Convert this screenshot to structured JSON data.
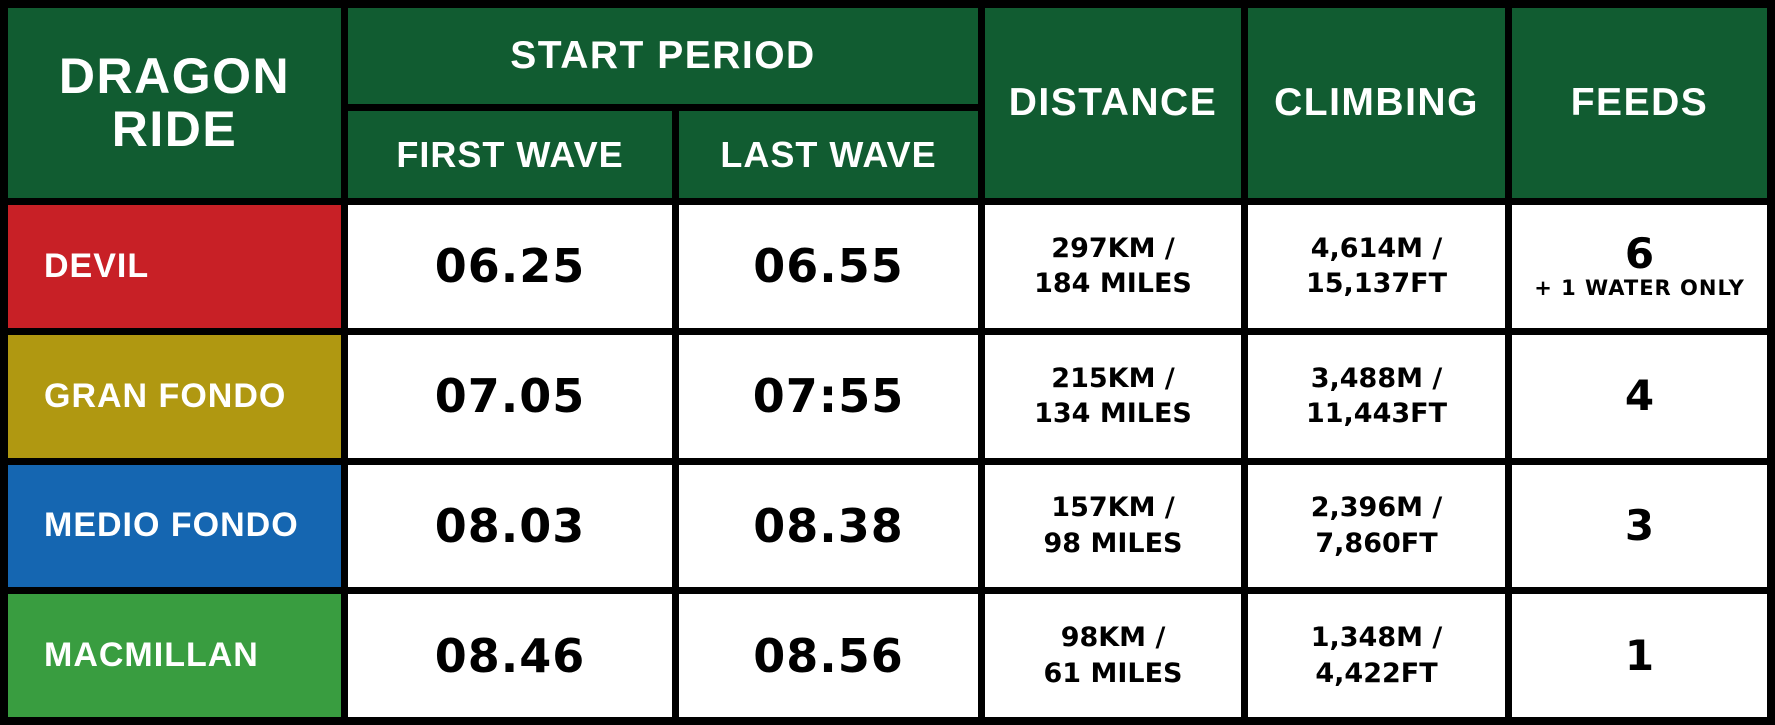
{
  "header": {
    "title_line1": "DRAGON",
    "title_line2": "RIDE",
    "start_period": "START PERIOD",
    "first_wave": "FIRST WAVE",
    "last_wave": "LAST WAVE",
    "distance": "DISTANCE",
    "climbing": "CLIMBING",
    "feeds": "FEEDS"
  },
  "colors": {
    "header_green": "#115c31",
    "devil_red": "#c82026",
    "gran_fondo_gold": "#b09811",
    "medio_fondo_blue": "#1566b1",
    "macmillan_green": "#399d40",
    "cell_white": "#ffffff",
    "border_black": "#000000"
  },
  "rows": [
    {
      "name": "DEVIL",
      "color": "#c82026",
      "first_wave": "06.25",
      "last_wave": "06.55",
      "distance_line1": "297KM /",
      "distance_line2": "184 MILES",
      "climbing_line1": "4,614M /",
      "climbing_line2": "15,137FT",
      "feeds": "6",
      "feeds_note": "+ 1 WATER ONLY"
    },
    {
      "name": "GRAN FONDO",
      "color": "#b09811",
      "first_wave": "07.05",
      "last_wave": "07:55",
      "distance_line1": "215KM /",
      "distance_line2": "134 MILES",
      "climbing_line1": "3,488M /",
      "climbing_line2": "11,443FT",
      "feeds": "4",
      "feeds_note": ""
    },
    {
      "name": "MEDIO FONDO",
      "color": "#1566b1",
      "first_wave": "08.03",
      "last_wave": "08.38",
      "distance_line1": "157KM /",
      "distance_line2": "98 MILES",
      "climbing_line1": "2,396M /",
      "climbing_line2": "7,860FT",
      "feeds": "3",
      "feeds_note": ""
    },
    {
      "name": "MACMILLAN",
      "color": "#399d40",
      "first_wave": "08.46",
      "last_wave": "08.56",
      "distance_line1": "98KM /",
      "distance_line2": "61 MILES",
      "climbing_line1": "1,348M /",
      "climbing_line2": "4,422FT",
      "feeds": "1",
      "feeds_note": ""
    }
  ],
  "chart_data": {
    "type": "table",
    "title": "DRAGON RIDE",
    "columns": [
      "DRAGON RIDE",
      "START PERIOD - FIRST WAVE",
      "START PERIOD - LAST WAVE",
      "DISTANCE",
      "CLIMBING",
      "FEEDS"
    ],
    "rows": [
      [
        "DEVIL",
        "06.25",
        "06.55",
        "297KM / 184 MILES",
        "4,614M / 15,137FT",
        "6 + 1 WATER ONLY"
      ],
      [
        "GRAN FONDO",
        "07.05",
        "07:55",
        "215KM / 134 MILES",
        "3,488M / 11,443FT",
        "4"
      ],
      [
        "MEDIO FONDO",
        "08.03",
        "08.38",
        "157KM / 98 MILES",
        "2,396M / 7,860FT",
        "3"
      ],
      [
        "MACMILLAN",
        "08.46",
        "08.56",
        "98KM / 61 MILES",
        "1,348M / 4,422FT",
        "1"
      ]
    ]
  }
}
